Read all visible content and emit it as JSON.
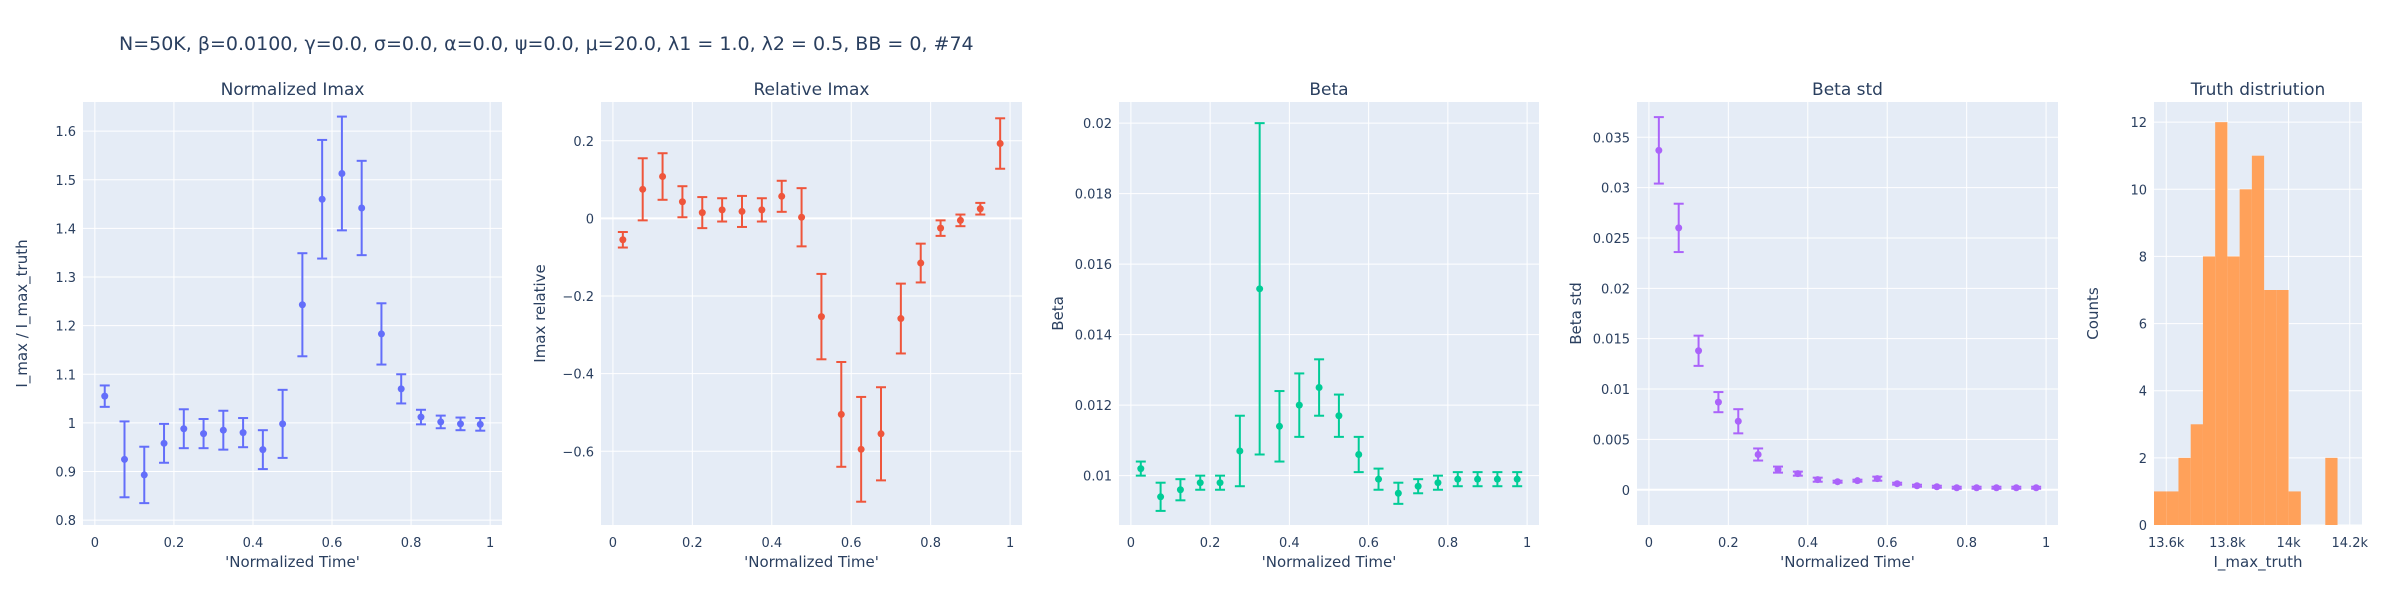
{
  "figure": {
    "suptitle": "N=50K, β=0.0100, γ=0.0, σ=0.0,  α=0.0, ψ=0.0, μ=20.0, λ1 = 1.0, λ2 = 0.5, BB = 0, #74"
  },
  "chart_data": [
    {
      "type": "scatter",
      "title": "Normalized Imax",
      "xlabel": "'Normalized Time'",
      "ylabel": "I_max / I_max_truth",
      "xlim": [
        -0.03,
        1.03
      ],
      "ylim": [
        0.79,
        1.66
      ],
      "xticks": [
        0,
        0.2,
        0.4,
        0.6,
        0.8,
        1
      ],
      "xtick_labels": [
        "0",
        "0.2",
        "0.4",
        "0.6",
        "0.8",
        "1"
      ],
      "yticks": [
        0.8,
        0.9,
        1.0,
        1.1,
        1.2,
        1.3,
        1.4,
        1.5,
        1.6
      ],
      "ytick_labels": [
        "0.8",
        "0.9",
        "1",
        "1.1",
        "1.2",
        "1.3",
        "1.4",
        "1.5",
        "1.6"
      ],
      "color": "#636efa",
      "grid": true,
      "zero_line": false,
      "x": [
        0.025,
        0.075,
        0.125,
        0.175,
        0.225,
        0.275,
        0.325,
        0.375,
        0.425,
        0.475,
        0.525,
        0.575,
        0.625,
        0.675,
        0.725,
        0.775,
        0.825,
        0.875,
        0.925,
        0.975
      ],
      "y": [
        1.055,
        0.925,
        0.893,
        0.958,
        0.988,
        0.978,
        0.985,
        0.98,
        0.945,
        0.998,
        1.243,
        1.46,
        1.513,
        1.442,
        1.183,
        1.07,
        1.012,
        1.002,
        0.998,
        0.997
      ],
      "error": [
        0.022,
        0.078,
        0.058,
        0.04,
        0.04,
        0.03,
        0.04,
        0.03,
        0.04,
        0.07,
        0.106,
        0.122,
        0.117,
        0.097,
        0.063,
        0.03,
        0.015,
        0.013,
        0.013,
        0.013
      ]
    },
    {
      "type": "scatter",
      "title": "Relative Imax",
      "xlabel": "'Normalized Time'",
      "ylabel": "Imax relative",
      "xlim": [
        -0.03,
        1.03
      ],
      "ylim": [
        -0.79,
        0.3
      ],
      "xticks": [
        0,
        0.2,
        0.4,
        0.6,
        0.8,
        1
      ],
      "xtick_labels": [
        "0",
        "0.2",
        "0.4",
        "0.6",
        "0.8",
        "1"
      ],
      "yticks": [
        -0.6,
        -0.4,
        -0.2,
        0,
        0.2
      ],
      "ytick_labels": [
        "−0.6",
        "−0.4",
        "−0.2",
        "0",
        "0.2"
      ],
      "color": "#ef553b",
      "grid": true,
      "zero_line": true,
      "x": [
        0.025,
        0.075,
        0.125,
        0.175,
        0.225,
        0.275,
        0.325,
        0.375,
        0.425,
        0.475,
        0.525,
        0.575,
        0.625,
        0.675,
        0.725,
        0.775,
        0.825,
        0.875,
        0.925,
        0.975
      ],
      "y": [
        -0.055,
        0.075,
        0.108,
        0.043,
        0.015,
        0.022,
        0.018,
        0.022,
        0.057,
        0.003,
        -0.253,
        -0.505,
        -0.595,
        -0.555,
        -0.258,
        -0.115,
        -0.025,
        -0.005,
        0.025,
        0.193
      ],
      "error": [
        0.02,
        0.08,
        0.06,
        0.04,
        0.04,
        0.03,
        0.04,
        0.03,
        0.04,
        0.075,
        0.11,
        0.135,
        0.135,
        0.12,
        0.09,
        0.05,
        0.02,
        0.015,
        0.015,
        0.065
      ]
    },
    {
      "type": "scatter",
      "title": "Beta",
      "xlabel": "'Normalized Time'",
      "ylabel": "Beta",
      "xlim": [
        -0.03,
        1.03
      ],
      "ylim": [
        0.0086,
        0.0206
      ],
      "xticks": [
        0,
        0.2,
        0.4,
        0.6,
        0.8,
        1
      ],
      "xtick_labels": [
        "0",
        "0.2",
        "0.4",
        "0.6",
        "0.8",
        "1"
      ],
      "yticks": [
        0.01,
        0.012,
        0.014,
        0.016,
        0.018,
        0.02
      ],
      "ytick_labels": [
        "0.01",
        "0.012",
        "0.014",
        "0.016",
        "0.018",
        "0.02"
      ],
      "color": "#00cc96",
      "grid": true,
      "zero_line": false,
      "x": [
        0.025,
        0.075,
        0.125,
        0.175,
        0.225,
        0.275,
        0.325,
        0.375,
        0.425,
        0.475,
        0.525,
        0.575,
        0.625,
        0.675,
        0.725,
        0.775,
        0.825,
        0.875,
        0.925,
        0.975
      ],
      "y": [
        0.0102,
        0.0094,
        0.0096,
        0.0098,
        0.0098,
        0.0107,
        0.0153,
        0.0114,
        0.012,
        0.0125,
        0.0117,
        0.0106,
        0.0099,
        0.0095,
        0.0097,
        0.0098,
        0.0099,
        0.0099,
        0.0099,
        0.0099
      ],
      "error": [
        0.0002,
        0.0004,
        0.0003,
        0.0002,
        0.0002,
        0.001,
        0.0047,
        0.001,
        0.0009,
        0.0008,
        0.0006,
        0.0005,
        0.0003,
        0.0003,
        0.0002,
        0.0002,
        0.0002,
        0.0002,
        0.0002,
        0.0002
      ]
    },
    {
      "type": "scatter",
      "title": "Beta std",
      "xlabel": "'Normalized Time'",
      "ylabel": "Beta std",
      "xlim": [
        -0.03,
        1.03
      ],
      "ylim": [
        -0.0035,
        0.0385
      ],
      "xticks": [
        0,
        0.2,
        0.4,
        0.6,
        0.8,
        1
      ],
      "xtick_labels": [
        "0",
        "0.2",
        "0.4",
        "0.6",
        "0.8",
        "1"
      ],
      "yticks": [
        0,
        0.005,
        0.01,
        0.015,
        0.02,
        0.025,
        0.03,
        0.035
      ],
      "ytick_labels": [
        "0",
        "0.005",
        "0.01",
        "0.015",
        "0.02",
        "0.025",
        "0.03",
        "0.035"
      ],
      "color": "#ab63fa",
      "grid": true,
      "zero_line": true,
      "x": [
        0.025,
        0.075,
        0.125,
        0.175,
        0.225,
        0.275,
        0.325,
        0.375,
        0.425,
        0.475,
        0.525,
        0.575,
        0.625,
        0.675,
        0.725,
        0.775,
        0.825,
        0.875,
        0.925,
        0.975
      ],
      "y": [
        0.0337,
        0.026,
        0.0138,
        0.0087,
        0.0068,
        0.0035,
        0.002,
        0.0016,
        0.001,
        0.0008,
        0.0009,
        0.0011,
        0.0006,
        0.0004,
        0.0003,
        0.0002,
        0.0002,
        0.0002,
        0.0002,
        0.0002
      ],
      "error": [
        0.0033,
        0.0024,
        0.0015,
        0.001,
        0.0012,
        0.0006,
        0.0003,
        0.0002,
        0.0002,
        0.0001,
        0.0001,
        0.0002,
        0.0001,
        0.0001,
        0.0001,
        0.0001,
        0.0001,
        0.0001,
        0.0001,
        0.0001
      ]
    },
    {
      "type": "bar",
      "title": "Truth distriution",
      "xlabel": "I_max_truth",
      "ylabel": "Counts",
      "xlim": [
        13560,
        14240
      ],
      "ylim": [
        0,
        12.6
      ],
      "xticks": [
        13600,
        13800,
        14000,
        14200
      ],
      "xtick_labels": [
        "13.6k",
        "13.8k",
        "14k",
        "14.2k"
      ],
      "yticks": [
        0,
        2,
        4,
        6,
        8,
        10,
        12
      ],
      "ytick_labels": [
        "0",
        "2",
        "4",
        "6",
        "8",
        "10",
        "12"
      ],
      "color": "#ffa15a",
      "grid": true,
      "bin_edges": [
        13560,
        13600,
        13640,
        13680,
        13720,
        13760,
        13800,
        13840,
        13880,
        13920,
        13960,
        14000,
        14040,
        14080,
        14120,
        14160,
        14200,
        14240
      ],
      "counts": [
        1,
        1,
        2,
        3,
        8,
        12,
        8,
        10,
        11,
        7,
        7,
        1,
        0,
        0,
        2,
        0,
        0
      ]
    }
  ]
}
